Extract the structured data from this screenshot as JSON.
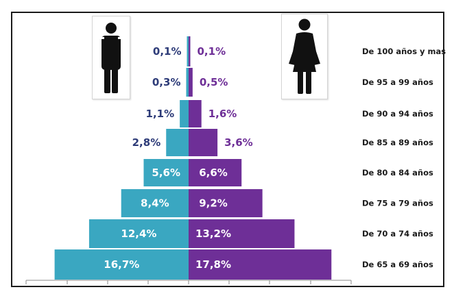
{
  "colors": {
    "male": "#3aa7c1",
    "female": "#6e2f97",
    "male_label": "#2d3b78",
    "female_label": "#6e2f97",
    "label_inside": "#ffffff",
    "axis": "#888888"
  },
  "icons": {
    "male": "man-icon",
    "female": "woman-icon"
  },
  "chart_data": {
    "type": "bar",
    "orientation": "horizontal",
    "subtype": "population-pyramid",
    "categories": [
      "De 100 años y mas",
      "De 95 a 99 años",
      "De 90 a 94 años",
      "De 85 a 89 años",
      "De 80 a 84 años",
      "De 75 a 79 años",
      "De 70 a 74 años",
      "De 65 a 69 años"
    ],
    "series": [
      {
        "side": "left",
        "values": [
          0.1,
          0.3,
          1.1,
          2.8,
          5.6,
          8.4,
          12.4,
          16.7
        ],
        "labels": [
          "0,1%",
          "0,3%",
          "1,1%",
          "2,8%",
          "5,6%",
          "8,4%",
          "12,4%",
          "16,7%"
        ]
      },
      {
        "side": "right",
        "values": [
          0.1,
          0.5,
          1.6,
          3.6,
          6.6,
          9.2,
          13.2,
          17.8
        ],
        "labels": [
          "0,1%",
          "0,5%",
          "1,6%",
          "3,6%",
          "6,6%",
          "9,2%",
          "13,2%",
          "17,8%"
        ]
      }
    ],
    "unit": "%",
    "xlim": [
      -20,
      20
    ],
    "grid": false,
    "legend": "none"
  }
}
